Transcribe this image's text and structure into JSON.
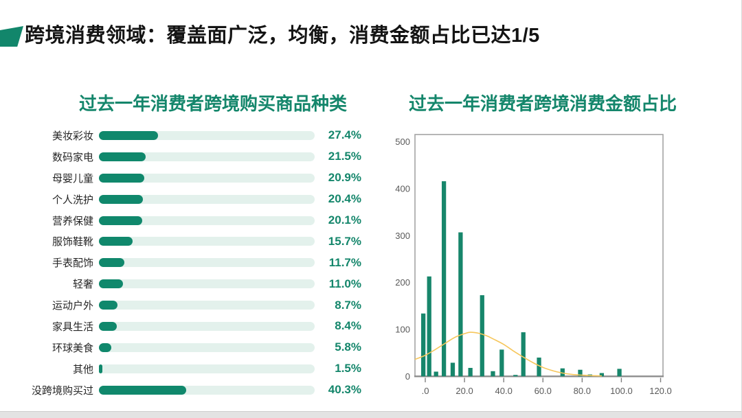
{
  "slide": {
    "title": "跨境消费领域：覆盖面广泛，均衡，消费金额占比已达1/5",
    "accent_color": "#12866B",
    "title_color": "#141414",
    "theme_green": "#14866B"
  },
  "chart_data": [
    {
      "type": "bar",
      "orientation": "horizontal",
      "title": "过去一年消费者跨境购买商品种类",
      "categories": [
        "美妆彩妆",
        "数码家电",
        "母婴儿童",
        "个人洗护",
        "营养保健",
        "服饰鞋靴",
        "手表配饰",
        "轻奢",
        "运动户外",
        "家具生活",
        "环球美食",
        "其他",
        "没跨境购买过"
      ],
      "values": [
        27.4,
        21.5,
        20.9,
        20.4,
        20.1,
        15.7,
        11.7,
        11.0,
        8.7,
        8.4,
        5.8,
        1.5,
        40.3
      ],
      "value_labels": [
        "27.4%",
        "21.5%",
        "20.9%",
        "20.4%",
        "20.1%",
        "15.7%",
        "11.7%",
        "11.0%",
        "8.7%",
        "8.4%",
        "5.8%",
        "1.5%",
        "40.3%"
      ],
      "xlim": [
        0,
        100
      ],
      "unit": "%",
      "bar_color": "#10886C",
      "track_color": "#E3F1EC",
      "title_color": "#14866B"
    },
    {
      "type": "histogram",
      "title": "过去一年消费者跨境消费金额占比",
      "x": [
        -1,
        2,
        5.5,
        9.5,
        14,
        18,
        23,
        29,
        34.5,
        39,
        46,
        50,
        58,
        70,
        79,
        84,
        90,
        99
      ],
      "heights": [
        134,
        213,
        10,
        416,
        29,
        307,
        18,
        173,
        11,
        57,
        3,
        94,
        40,
        17,
        14,
        4,
        7,
        16
      ],
      "bar_width": 2.2,
      "curve": [
        [
          -5.3,
          36
        ],
        [
          0,
          45
        ],
        [
          5,
          57
        ],
        [
          10,
          70
        ],
        [
          15,
          83
        ],
        [
          20,
          91
        ],
        [
          23,
          94
        ],
        [
          27,
          92
        ],
        [
          31,
          87
        ],
        [
          35,
          79
        ],
        [
          40,
          68
        ],
        [
          45,
          54
        ],
        [
          50,
          41
        ],
        [
          55,
          29
        ],
        [
          60,
          19
        ],
        [
          65,
          12
        ],
        [
          70,
          7
        ],
        [
          75,
          4
        ],
        [
          80,
          2.5
        ],
        [
          85,
          1.5
        ],
        [
          90,
          1
        ]
      ],
      "ylim": [
        0,
        515
      ],
      "yticks": [
        0,
        100,
        200,
        300,
        400,
        500
      ],
      "ytick_labels": [
        "0",
        "100",
        "200",
        "300",
        "400",
        "500"
      ],
      "xticks": [
        0,
        20,
        40,
        60,
        80,
        100,
        120
      ],
      "xtick_labels": [
        ".0",
        "20.0",
        "40.0",
        "60.0",
        "80.0",
        "100.0",
        "120.0"
      ],
      "xlim": [
        -5.3,
        121.4
      ],
      "grid": false,
      "legend": "none",
      "bar_color": "#17866B",
      "curve_color": "#F6C65A",
      "frame_color": "#A3A3A3",
      "tick_label_color": "#595959",
      "title_color": "#14866B"
    }
  ]
}
